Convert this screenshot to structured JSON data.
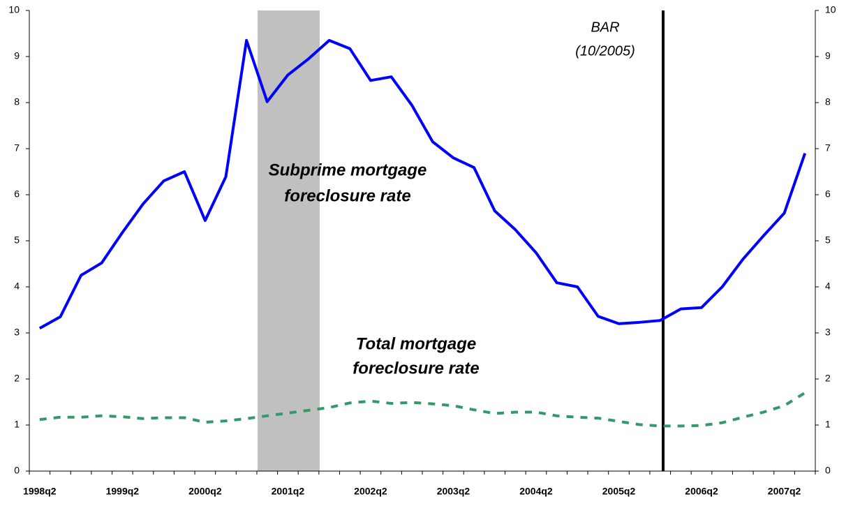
{
  "chart_data": {
    "type": "line",
    "categories": [
      "1998q2",
      null,
      null,
      null,
      "1999q2",
      null,
      null,
      null,
      "2000q2",
      null,
      null,
      null,
      "2001q2",
      null,
      null,
      null,
      "2002q2",
      null,
      null,
      null,
      "2003q2",
      null,
      null,
      null,
      "2004q2",
      null,
      null,
      null,
      "2005q2",
      null,
      null,
      null,
      "2006q2",
      null,
      null,
      null,
      "2007q2",
      null
    ],
    "series": [
      {
        "name": "Subprime mortgage foreclosure rate",
        "color": "#0000ff",
        "dash": false,
        "values": [
          3.1,
          3.35,
          4.25,
          4.52,
          5.18,
          5.8,
          6.3,
          6.5,
          5.44,
          6.39,
          9.35,
          8.02,
          8.6,
          8.95,
          9.35,
          9.17,
          8.48,
          8.56,
          7.94,
          7.15,
          6.8,
          6.59,
          5.65,
          5.24,
          4.74,
          4.09,
          4.0,
          3.36,
          3.2,
          3.23,
          3.27,
          3.52,
          3.55,
          4.0,
          4.6,
          5.11,
          5.6,
          6.9
        ]
      },
      {
        "name": "Total mortgage foreclosure rate",
        "color": "#339966",
        "dash": true,
        "values": [
          1.12,
          1.17,
          1.17,
          1.2,
          1.18,
          1.14,
          1.16,
          1.16,
          1.06,
          1.09,
          1.14,
          1.2,
          1.26,
          1.32,
          1.38,
          1.48,
          1.52,
          1.47,
          1.49,
          1.46,
          1.42,
          1.33,
          1.25,
          1.28,
          1.28,
          1.2,
          1.17,
          1.15,
          1.08,
          1.01,
          0.98,
          0.98,
          0.99,
          1.05,
          1.17,
          1.28,
          1.42,
          1.7
        ]
      }
    ],
    "annotations": [
      "Subprime mortgage",
      "foreclosure rate",
      "Total mortgage",
      "foreclosure rate",
      "BAR",
      "(10/2005)"
    ],
    "ylim": [
      0,
      10
    ],
    "yticks": [
      0,
      1,
      2,
      3,
      4,
      5,
      6,
      7,
      8,
      9,
      10
    ],
    "y2lim": [
      0,
      10
    ],
    "y2ticks": [
      0,
      1,
      2,
      3,
      4,
      5,
      6,
      7,
      8,
      9,
      10
    ]
  }
}
